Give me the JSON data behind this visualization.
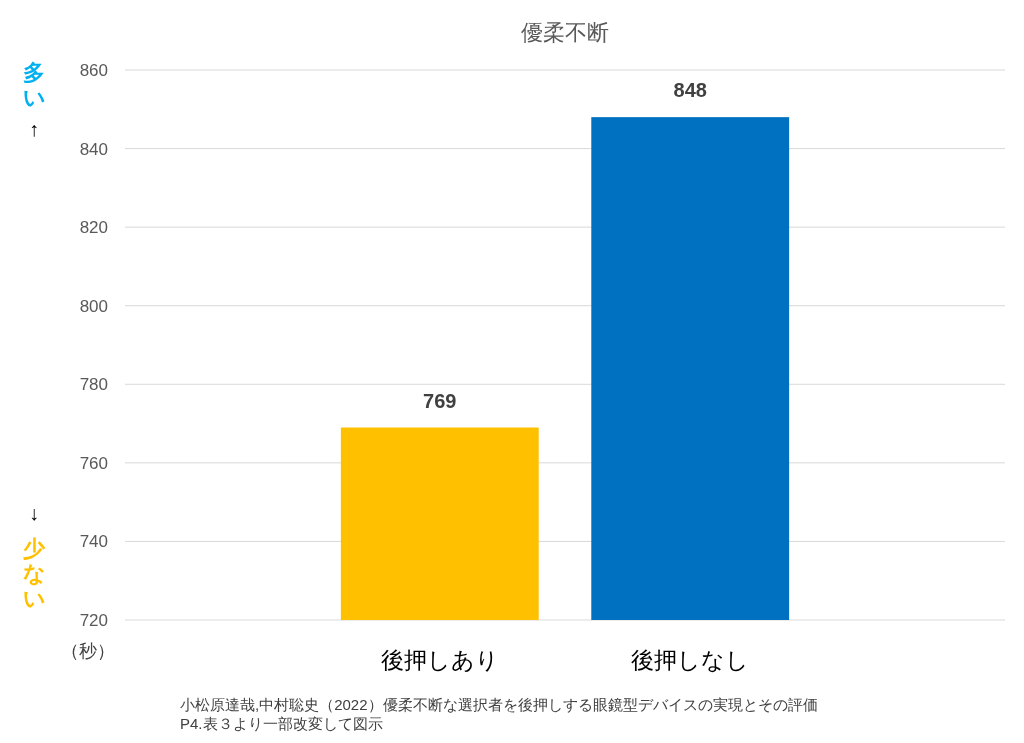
{
  "chart_data": {
    "type": "bar",
    "title": "優柔不断",
    "ylabel": "（秒）",
    "categories": [
      "後押しあり",
      "後押しなし"
    ],
    "values": [
      769,
      848
    ],
    "colors": [
      "#ffc000",
      "#0070c0"
    ],
    "ylim": [
      720,
      860
    ],
    "yticks": [
      720,
      740,
      760,
      780,
      800,
      820,
      840,
      860
    ],
    "grid": "y",
    "data_labels": true,
    "annotations": [
      "多い",
      "↑",
      "↓",
      "少ない",
      "小松原達哉,中村聡史（2022）優柔不断な選択者を後押しする眼鏡型デバイスの実現とその評価",
      "P4.表３より一部改変して図示"
    ]
  }
}
